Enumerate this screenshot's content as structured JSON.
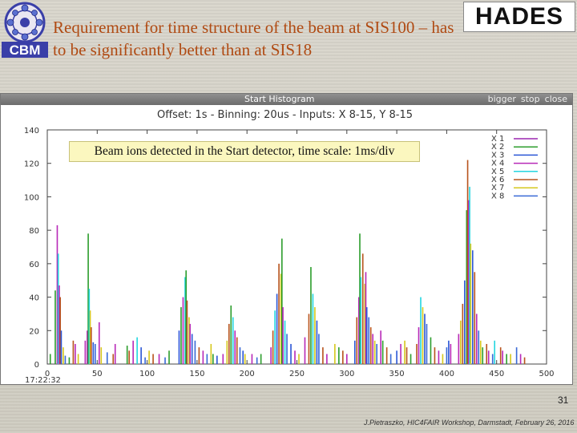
{
  "slide": {
    "title": "Requirement for time structure of  the beam at SIS100 – has to be significantly better than at SIS18",
    "cbm_logo_text": "CBM",
    "hades_logo_text": "HADES",
    "annotation": "Beam ions detected in the Start detector, time scale: 1ms/div",
    "page_number": "31",
    "footer": "J.Pietraszko, HIC4FAIR Workshop, Darmstadt, February 26, 2016"
  },
  "window": {
    "title": "Start Histogram",
    "buttons": [
      "bigger",
      "stop",
      "close"
    ]
  },
  "chart_data": {
    "type": "bar",
    "title": "Offset: 1s - Binning: 20us - Inputs: X 8-15, Y 8-15",
    "xlabel": "",
    "ylabel": "",
    "xlim": [
      0,
      500
    ],
    "ylim": [
      0,
      140
    ],
    "x_ticks": [
      0,
      50,
      100,
      150,
      200,
      250,
      300,
      350,
      400,
      450,
      500
    ],
    "y_ticks": [
      0,
      20,
      40,
      60,
      80,
      100,
      120,
      140
    ],
    "x_origin_label": "17:22:32",
    "grid": false,
    "legend_position": "right",
    "bar_width": 1,
    "series": [
      {
        "name": "X 1",
        "color": "#9c27b0"
      },
      {
        "name": "X 2",
        "color": "#2e9e2e"
      },
      {
        "name": "X 3",
        "color": "#2c57d6"
      },
      {
        "name": "X 4",
        "color": "#b82ab8"
      },
      {
        "name": "X 5",
        "color": "#25d6e0"
      },
      {
        "name": "X 6",
        "color": "#b8541e"
      },
      {
        "name": "X 7",
        "color": "#d6c81e"
      },
      {
        "name": "X 8",
        "color": "#3a6ad6"
      }
    ],
    "points": [
      [
        3,
        6,
        1
      ],
      [
        8,
        44,
        1
      ],
      [
        10,
        83,
        3
      ],
      [
        11,
        66,
        4
      ],
      [
        12,
        47,
        3
      ],
      [
        13,
        40,
        5
      ],
      [
        14,
        20,
        2
      ],
      [
        16,
        10,
        6
      ],
      [
        18,
        5,
        7
      ],
      [
        22,
        4,
        1
      ],
      [
        26,
        14,
        5
      ],
      [
        28,
        12,
        3
      ],
      [
        31,
        6,
        6
      ],
      [
        38,
        14,
        3
      ],
      [
        40,
        20,
        3
      ],
      [
        41,
        78,
        1
      ],
      [
        42,
        45,
        4
      ],
      [
        43,
        32,
        6
      ],
      [
        44,
        22,
        5
      ],
      [
        46,
        13,
        2
      ],
      [
        48,
        12,
        7
      ],
      [
        52,
        25,
        3
      ],
      [
        54,
        10,
        6
      ],
      [
        60,
        7,
        7
      ],
      [
        66,
        6,
        5
      ],
      [
        68,
        12,
        3
      ],
      [
        80,
        11,
        1
      ],
      [
        82,
        8,
        5
      ],
      [
        86,
        14,
        3
      ],
      [
        90,
        16,
        4
      ],
      [
        94,
        10,
        2
      ],
      [
        98,
        4,
        7
      ],
      [
        102,
        8,
        6
      ],
      [
        106,
        6,
        5
      ],
      [
        112,
        6,
        3
      ],
      [
        118,
        4,
        7
      ],
      [
        122,
        8,
        1
      ],
      [
        132,
        20,
        2
      ],
      [
        134,
        34,
        1
      ],
      [
        136,
        40,
        3
      ],
      [
        138,
        52,
        4
      ],
      [
        139,
        56,
        1
      ],
      [
        140,
        38,
        5
      ],
      [
        142,
        28,
        6
      ],
      [
        143,
        24,
        3
      ],
      [
        145,
        18,
        2
      ],
      [
        148,
        14,
        7
      ],
      [
        152,
        10,
        5
      ],
      [
        156,
        8,
        3
      ],
      [
        160,
        6,
        7
      ],
      [
        164,
        12,
        6
      ],
      [
        166,
        6,
        1
      ],
      [
        170,
        5,
        2
      ],
      [
        176,
        6,
        3
      ],
      [
        180,
        14,
        6
      ],
      [
        182,
        24,
        5
      ],
      [
        184,
        35,
        1
      ],
      [
        186,
        28,
        4
      ],
      [
        188,
        20,
        3
      ],
      [
        190,
        16,
        5
      ],
      [
        193,
        10,
        7
      ],
      [
        196,
        8,
        2
      ],
      [
        198,
        6,
        6
      ],
      [
        205,
        6,
        3
      ],
      [
        210,
        4,
        7
      ],
      [
        214,
        6,
        1
      ],
      [
        224,
        10,
        3
      ],
      [
        226,
        20,
        5
      ],
      [
        228,
        32,
        4
      ],
      [
        230,
        42,
        2
      ],
      [
        232,
        60,
        5
      ],
      [
        234,
        54,
        6
      ],
      [
        235,
        75,
        1
      ],
      [
        236,
        34,
        3
      ],
      [
        238,
        26,
        4
      ],
      [
        240,
        18,
        7
      ],
      [
        244,
        12,
        2
      ],
      [
        248,
        8,
        3
      ],
      [
        252,
        6,
        6
      ],
      [
        258,
        16,
        3
      ],
      [
        262,
        30,
        5
      ],
      [
        264,
        58,
        1
      ],
      [
        266,
        42,
        4
      ],
      [
        268,
        34,
        6
      ],
      [
        270,
        26,
        2
      ],
      [
        272,
        18,
        7
      ],
      [
        276,
        10,
        5
      ],
      [
        280,
        6,
        3
      ],
      [
        288,
        12,
        6
      ],
      [
        292,
        10,
        1
      ],
      [
        296,
        8,
        5
      ],
      [
        300,
        6,
        3
      ],
      [
        308,
        14,
        2
      ],
      [
        310,
        28,
        5
      ],
      [
        312,
        40,
        3
      ],
      [
        313,
        78,
        1
      ],
      [
        314,
        52,
        4
      ],
      [
        316,
        66,
        5
      ],
      [
        318,
        48,
        6
      ],
      [
        319,
        55,
        3
      ],
      [
        320,
        34,
        2
      ],
      [
        322,
        28,
        7
      ],
      [
        324,
        22,
        5
      ],
      [
        326,
        18,
        3
      ],
      [
        328,
        14,
        6
      ],
      [
        330,
        12,
        7
      ],
      [
        334,
        20,
        3
      ],
      [
        336,
        14,
        1
      ],
      [
        340,
        10,
        5
      ],
      [
        344,
        6,
        7
      ],
      [
        350,
        8,
        2
      ],
      [
        354,
        12,
        3
      ],
      [
        358,
        14,
        6
      ],
      [
        360,
        10,
        5
      ],
      [
        364,
        6,
        1
      ],
      [
        370,
        12,
        5
      ],
      [
        372,
        22,
        3
      ],
      [
        374,
        40,
        4
      ],
      [
        376,
        34,
        6
      ],
      [
        378,
        30,
        2
      ],
      [
        380,
        24,
        7
      ],
      [
        384,
        16,
        1
      ],
      [
        388,
        10,
        5
      ],
      [
        392,
        8,
        3
      ],
      [
        396,
        6,
        6
      ],
      [
        400,
        10,
        7
      ],
      [
        402,
        14,
        2
      ],
      [
        404,
        12,
        3
      ],
      [
        412,
        18,
        3
      ],
      [
        414,
        26,
        6
      ],
      [
        416,
        36,
        5
      ],
      [
        418,
        50,
        2
      ],
      [
        420,
        92,
        1
      ],
      [
        421,
        122,
        5
      ],
      [
        422,
        98,
        3
      ],
      [
        423,
        106,
        4
      ],
      [
        424,
        72,
        6
      ],
      [
        426,
        68,
        2
      ],
      [
        428,
        55,
        5
      ],
      [
        430,
        30,
        3
      ],
      [
        432,
        20,
        7
      ],
      [
        434,
        14,
        6
      ],
      [
        436,
        10,
        1
      ],
      [
        440,
        12,
        5
      ],
      [
        442,
        8,
        3
      ],
      [
        446,
        6,
        7
      ],
      [
        448,
        14,
        4
      ],
      [
        454,
        10,
        5
      ],
      [
        456,
        8,
        3
      ],
      [
        460,
        6,
        1
      ],
      [
        464,
        6,
        6
      ],
      [
        470,
        10,
        7
      ],
      [
        474,
        6,
        3
      ],
      [
        478,
        4,
        5
      ]
    ]
  }
}
